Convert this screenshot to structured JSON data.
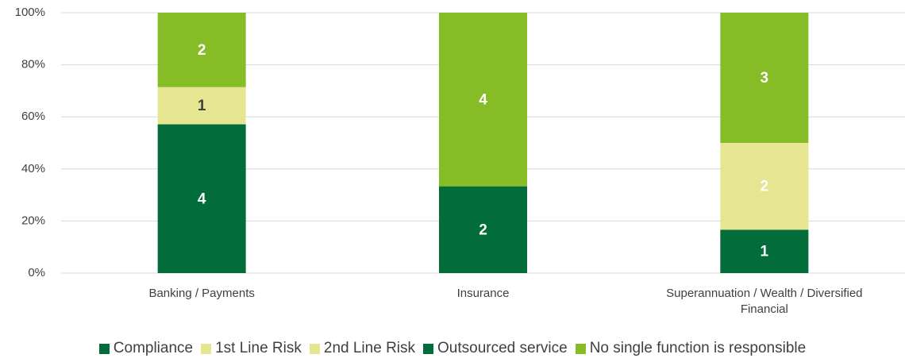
{
  "chart_data": {
    "type": "bar",
    "stacking": "percent",
    "categories": [
      "Banking / Payments",
      "Insurance",
      "Superannuation / Wealth / Diversified Financial"
    ],
    "series": [
      {
        "name": "Compliance",
        "color": "#026c3a",
        "label_color": "#ffffff",
        "values": [
          4,
          2,
          1
        ]
      },
      {
        "name": "1st Line Risk",
        "color": "#e6e592",
        "label_color": "#404040",
        "values": [
          1,
          null,
          null
        ]
      },
      {
        "name": "2nd Line Risk",
        "color": "#e6e592",
        "label_color": "#ffffff",
        "values": [
          null,
          null,
          2
        ]
      },
      {
        "name": "Outsourced service",
        "color": "#026c3a",
        "label_color": "#ffffff",
        "values": [
          null,
          null,
          null
        ]
      },
      {
        "name": "No single function is responsible",
        "color": "#86bc25",
        "label_color": "#ffffff",
        "values": [
          2,
          4,
          3
        ]
      }
    ],
    "ylim": [
      0,
      100
    ],
    "yticks": [
      {
        "value": 0,
        "label": "0%"
      },
      {
        "value": 20,
        "label": "20%"
      },
      {
        "value": 40,
        "label": "40%"
      },
      {
        "value": 60,
        "label": "60%"
      },
      {
        "value": 80,
        "label": "80%"
      },
      {
        "value": 100,
        "label": "100%"
      }
    ],
    "grid": true,
    "legend": "bottom"
  }
}
